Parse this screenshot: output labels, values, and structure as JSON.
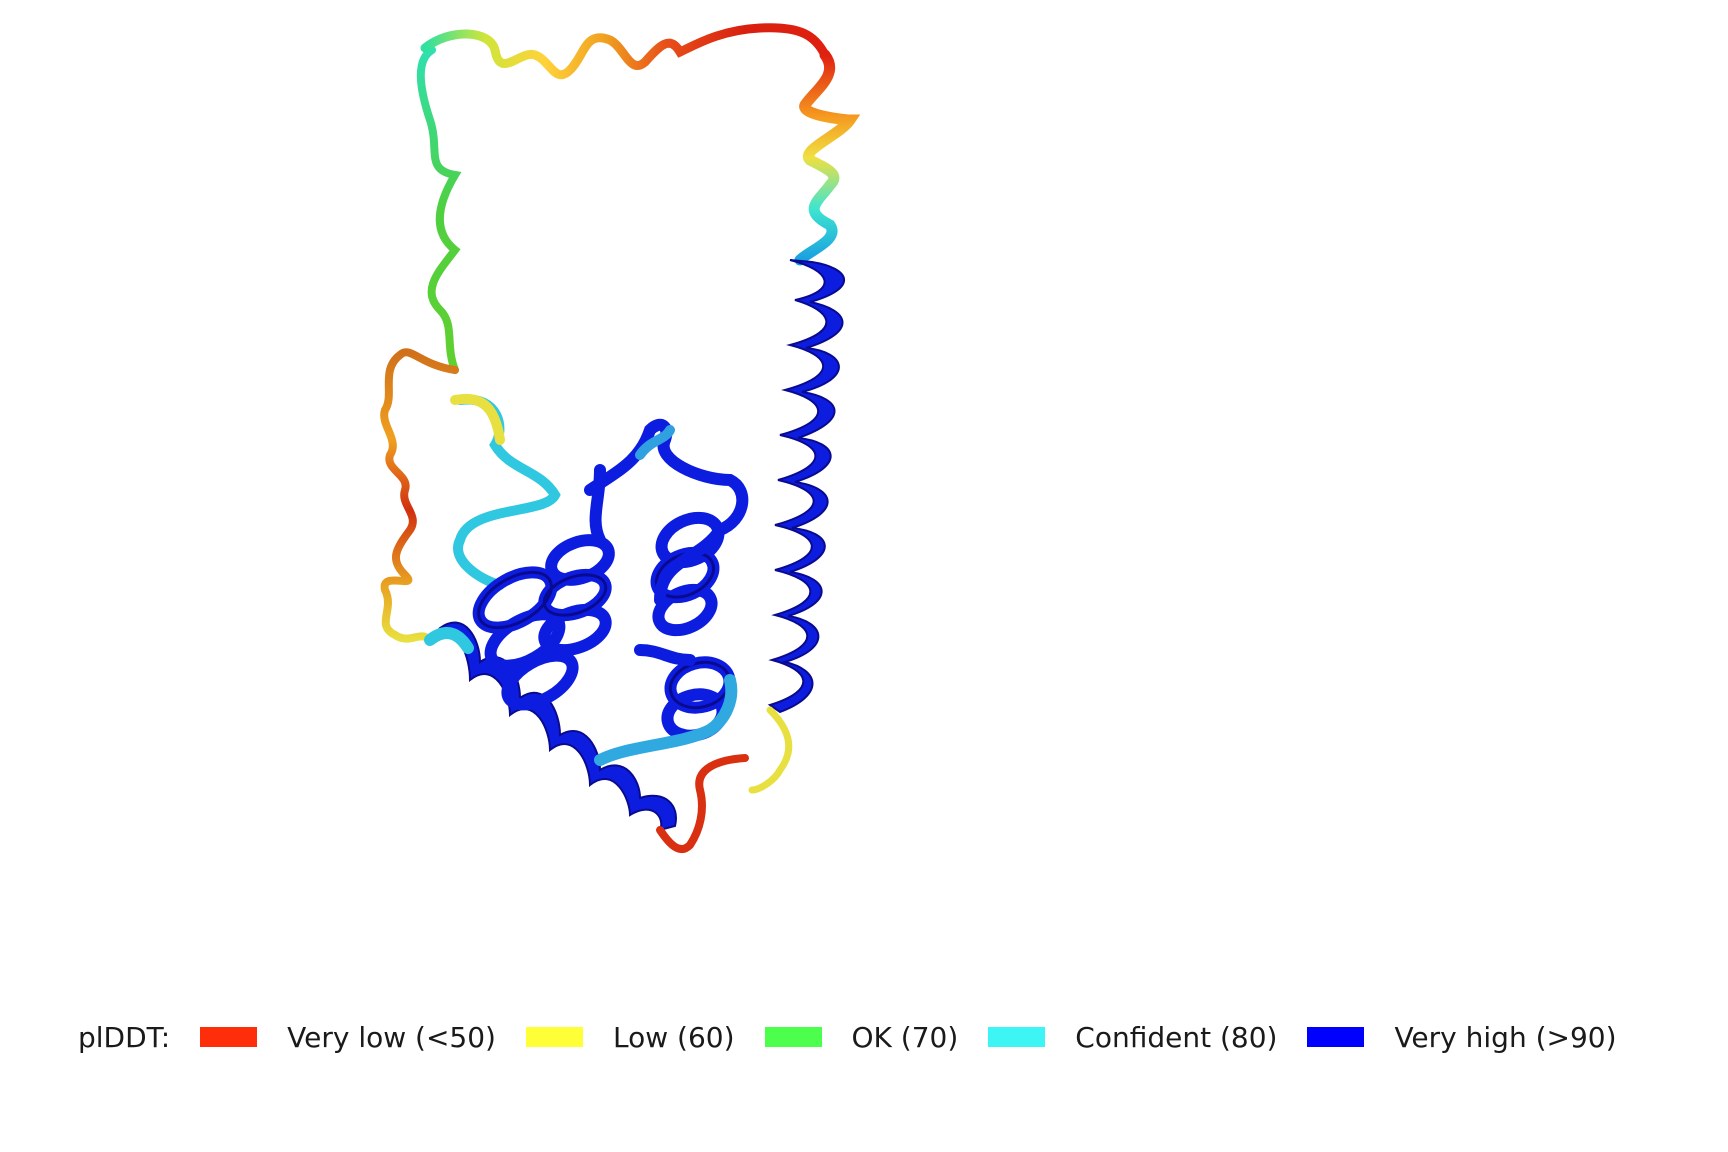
{
  "legend": {
    "title": "plDDT:",
    "items": [
      {
        "label": "Very low (<50)",
        "color": "#ff2e0a",
        "name": "very-low"
      },
      {
        "label": "Low (60)",
        "color": "#ffff38",
        "name": "low"
      },
      {
        "label": "OK (70)",
        "color": "#4dff4d",
        "name": "ok"
      },
      {
        "label": "Confident (80)",
        "color": "#3df5f5",
        "name": "confident"
      },
      {
        "label": "Very high (>90)",
        "color": "#0000ff",
        "name": "very-high"
      }
    ]
  },
  "structure": {
    "type": "protein-cartoon",
    "color_scheme": "plddt"
  }
}
